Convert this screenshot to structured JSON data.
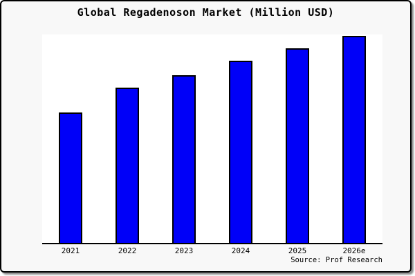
{
  "window": {
    "background_color": "#ffffff",
    "frame_background_color": "#f8f8f8",
    "frame_border_color": "#000000",
    "frame_shadow_color": "#8f8f8f"
  },
  "chart_data": {
    "type": "bar",
    "title": "Global Regadenoson Market (Million USD)",
    "categories": [
      "2021",
      "2022",
      "2023",
      "2024",
      "2025",
      "2026e"
    ],
    "values": [
      63,
      75,
      81,
      88,
      94,
      100
    ],
    "note": "No y-axis, gridlines or value labels are shown in the chart; values are relative bar heights normalized to 2026e = 100.",
    "xlabel": "",
    "ylabel": "",
    "grid": false,
    "legend": "none",
    "bar_color": "#0000f8",
    "bar_border_color": "#000000",
    "plot_background_color": "#ffffff",
    "axis_line_color": "#000000",
    "source_label": "Source: Prof Research"
  }
}
